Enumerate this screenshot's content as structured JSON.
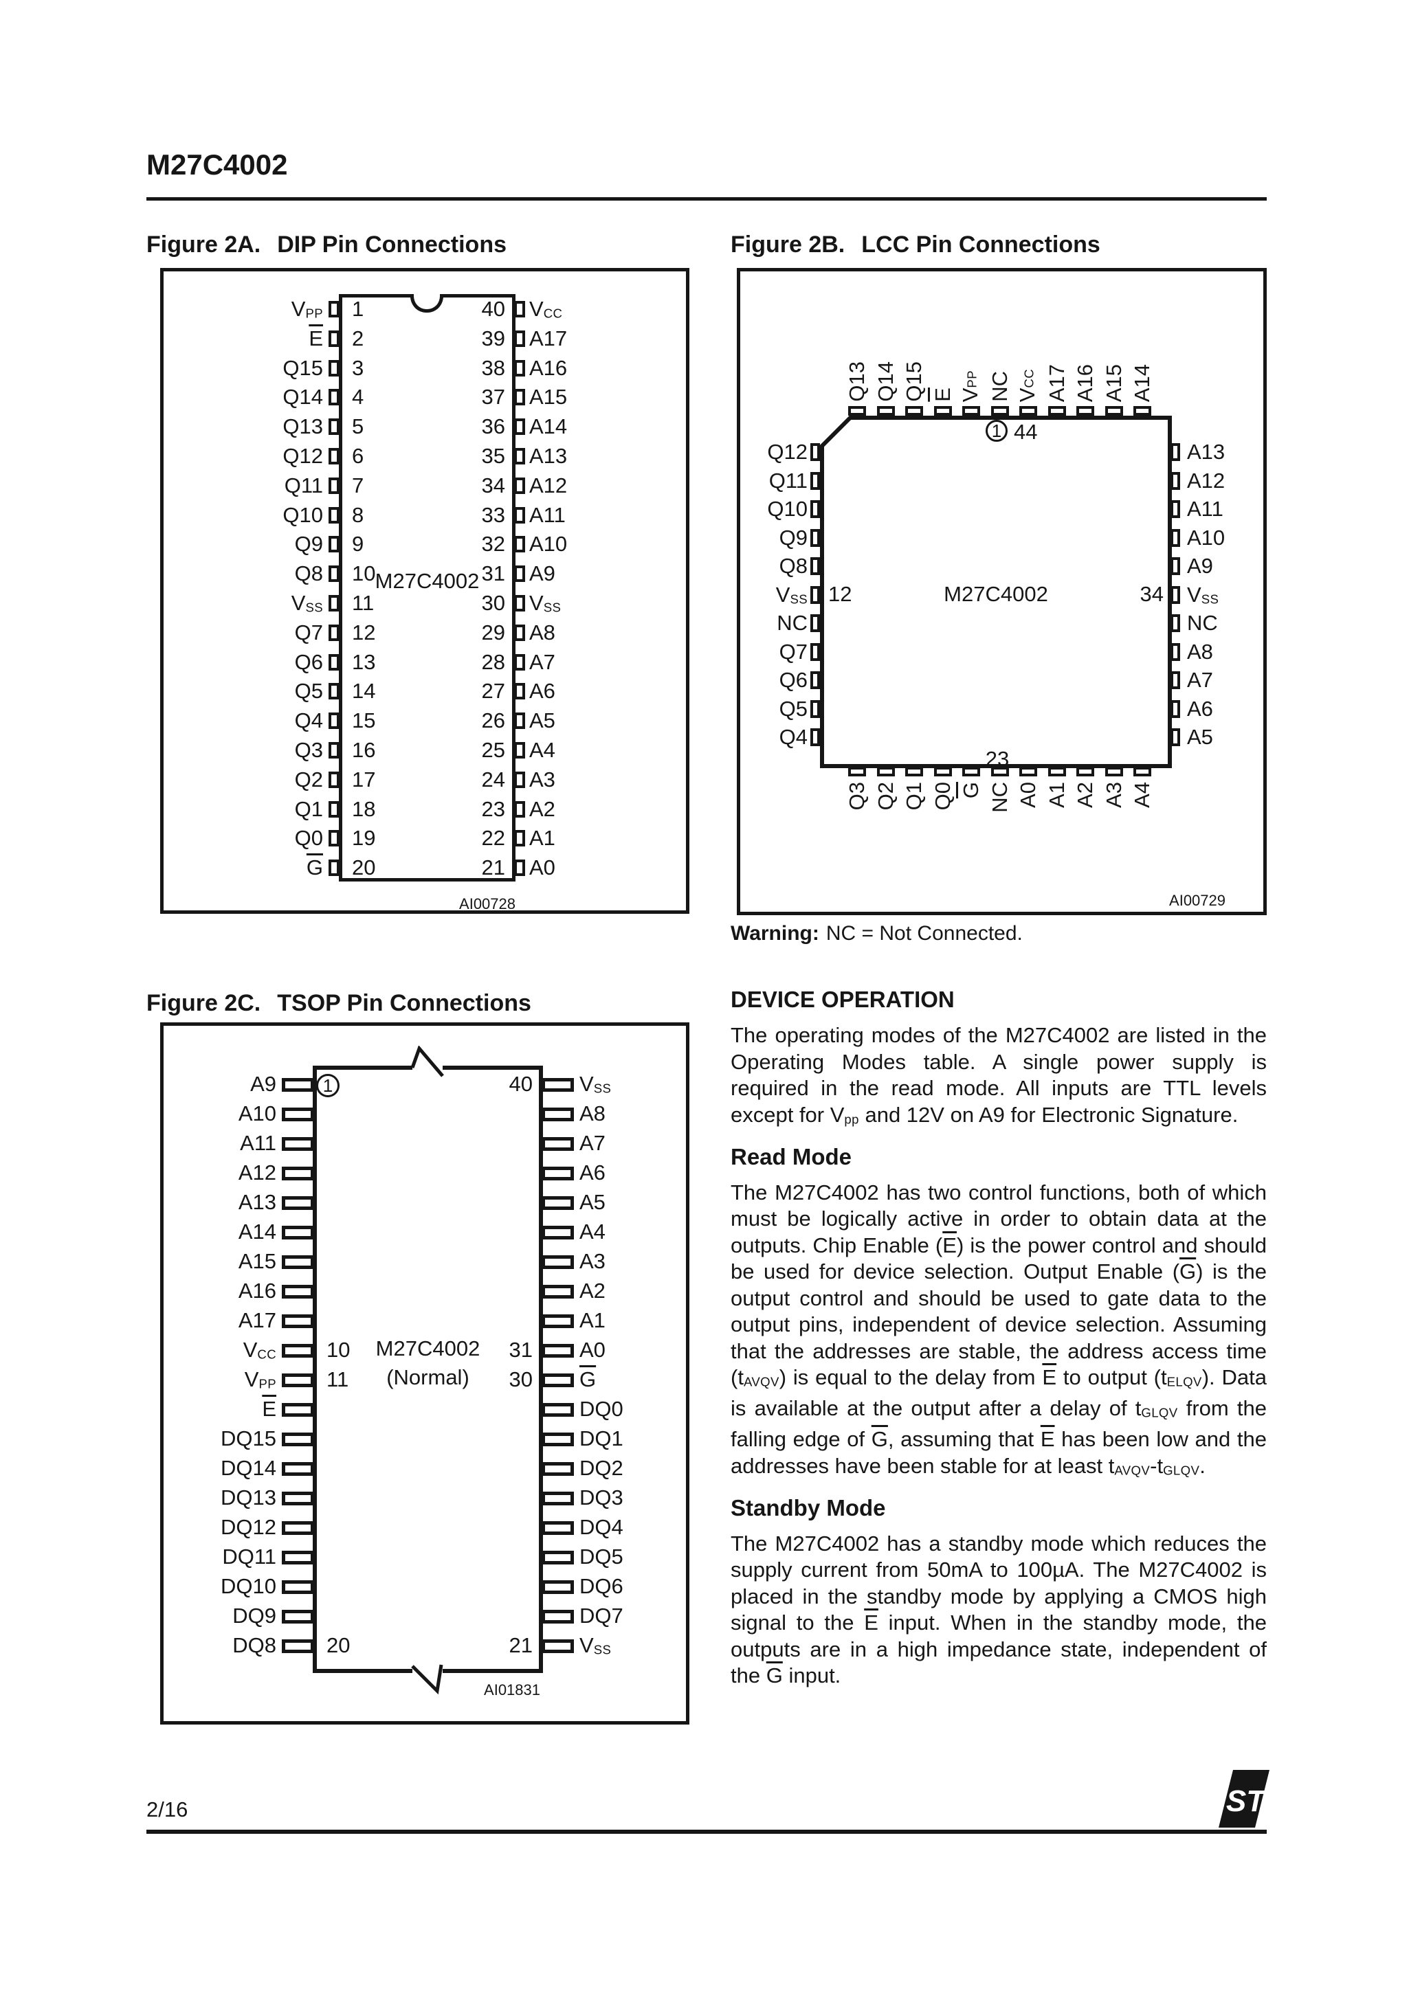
{
  "page": {
    "doc_title": "M27C4002"
  },
  "figure_2a": {
    "label": "Figure 2A.",
    "title": "DIP Pin Connections",
    "chip_label": "M27C4002",
    "note": "AI00728",
    "left_pins": [
      [
        "V[s]PP[/s]",
        "1"
      ],
      [
        "[o]E[/o]",
        "2"
      ],
      [
        "Q15",
        "3"
      ],
      [
        "Q14",
        "4"
      ],
      [
        "Q13",
        "5"
      ],
      [
        "Q12",
        "6"
      ],
      [
        "Q11",
        "7"
      ],
      [
        "Q10",
        "8"
      ],
      [
        "Q9",
        "9"
      ],
      [
        "Q8",
        "10"
      ],
      [
        "V[s]SS[/s]",
        "11"
      ],
      [
        "Q7",
        "12"
      ],
      [
        "Q6",
        "13"
      ],
      [
        "Q5",
        "14"
      ],
      [
        "Q4",
        "15"
      ],
      [
        "Q3",
        "16"
      ],
      [
        "Q2",
        "17"
      ],
      [
        "Q1",
        "18"
      ],
      [
        "Q0",
        "19"
      ],
      [
        "[o]G[/o]",
        "20"
      ]
    ],
    "right_pins": [
      [
        "40",
        "V[s]CC[/s]"
      ],
      [
        "39",
        "A17"
      ],
      [
        "38",
        "A16"
      ],
      [
        "37",
        "A15"
      ],
      [
        "36",
        "A14"
      ],
      [
        "35",
        "A13"
      ],
      [
        "34",
        "A12"
      ],
      [
        "33",
        "A11"
      ],
      [
        "32",
        "A10"
      ],
      [
        "31",
        "A9"
      ],
      [
        "30",
        "V[s]SS[/s]"
      ],
      [
        "29",
        "A8"
      ],
      [
        "28",
        "A7"
      ],
      [
        "27",
        "A6"
      ],
      [
        "26",
        "A5"
      ],
      [
        "25",
        "A4"
      ],
      [
        "24",
        "A3"
      ],
      [
        "23",
        "A2"
      ],
      [
        "22",
        "A1"
      ],
      [
        "21",
        "A0"
      ]
    ]
  },
  "figure_2b": {
    "label": "Figure 2B.",
    "title": "LCC Pin Connections",
    "chip_label": "M27C4002",
    "note": "AI00729",
    "pin1_marker": "1",
    "pin1_num": "44",
    "left_num": "12",
    "right_num": "34",
    "bottom_num": "23",
    "top_pins": [
      "Q13",
      "Q14",
      "Q15",
      "[o]E[/o]",
      "V[s]PP[/s]",
      "NC",
      "V[s]CC[/s]",
      "A17",
      "A16",
      "A15",
      "A14"
    ],
    "left_pins": [
      "Q12",
      "Q11",
      "Q10",
      "Q9",
      "Q8",
      "V[s]SS[/s]",
      "NC",
      "Q7",
      "Q6",
      "Q5",
      "Q4"
    ],
    "right_pins": [
      "A13",
      "A12",
      "A11",
      "A10",
      "A9",
      "V[s]SS[/s]",
      "NC",
      "A8",
      "A7",
      "A6",
      "A5"
    ],
    "bottom_pins": [
      "Q3",
      "Q2",
      "Q1",
      "Q0",
      "[o]G[/o]",
      "NC",
      "A0",
      "A1",
      "A2",
      "A3",
      "A4"
    ],
    "warning_label": "Warning:",
    "warning_text": "NC = Not Connected."
  },
  "figure_2c": {
    "label": "Figure 2C.",
    "title": "TSOP Pin Connections",
    "chip_label": "M27C4002",
    "chip_sublabel": "(Normal)",
    "note": "AI01831",
    "pin1_marker": "1",
    "left_pins": [
      [
        "A9",
        ""
      ],
      [
        "A10",
        ""
      ],
      [
        "A11",
        ""
      ],
      [
        "A12",
        ""
      ],
      [
        "A13",
        ""
      ],
      [
        "A14",
        ""
      ],
      [
        "A15",
        ""
      ],
      [
        "A16",
        ""
      ],
      [
        "A17",
        ""
      ],
      [
        "V[s]CC[/s]",
        "10"
      ],
      [
        "V[s]PP[/s]",
        "11"
      ],
      [
        "[o]E[/o]",
        ""
      ],
      [
        "DQ15",
        ""
      ],
      [
        "DQ14",
        ""
      ],
      [
        "DQ13",
        ""
      ],
      [
        "DQ12",
        ""
      ],
      [
        "DQ11",
        ""
      ],
      [
        "DQ10",
        ""
      ],
      [
        "DQ9",
        ""
      ],
      [
        "DQ8",
        "20"
      ]
    ],
    "right_pins": [
      [
        "40",
        "V[s]SS[/s]"
      ],
      [
        "",
        "A8"
      ],
      [
        "",
        "A7"
      ],
      [
        "",
        "A6"
      ],
      [
        "",
        "A5"
      ],
      [
        "",
        "A4"
      ],
      [
        "",
        "A3"
      ],
      [
        "",
        "A2"
      ],
      [
        "",
        "A1"
      ],
      [
        "31",
        "A0"
      ],
      [
        "30",
        "[o]G[/o]"
      ],
      [
        "",
        "DQ0"
      ],
      [
        "",
        "DQ1"
      ],
      [
        "",
        "DQ2"
      ],
      [
        "",
        "DQ3"
      ],
      [
        "",
        "DQ4"
      ],
      [
        "",
        "DQ5"
      ],
      [
        "",
        "DQ6"
      ],
      [
        "",
        "DQ7"
      ],
      [
        "21",
        "V[s]SS[/s]"
      ]
    ]
  },
  "sections": [
    {
      "heading": "DEVICE OPERATION",
      "body": "The operating modes of the M27C4002 are listed in the Operating Modes table. A single power sup­ply is required in the read mode.  All inputs are TTL levels except for V[s]pp[/s] and 12V on A9 for Electronic Signature."
    },
    {
      "heading": "Read Mode",
      "body": "The M27C4002 has two control functions, both of which must be logically active in order to obtain data at the outputs.  Chip Enable ([o]E[/o]) is the power control and should be used for device selection. Output Enable ([o]G[/o]) is the output control and should be used to gate data to the output pins, inde­pendent of device selection.  Assuming that the addresses are stable, the address access time (t[s]AVQV[/s]) is equal to the delay from [o]E[/o] to output (t[s]ELQV[/s]). Data is available at the output after a delay of t[s]GLQV[/s] from the falling edge of [o]G[/o], assuming that [o]E[/o] has been low and the addresses have been stable for at least t[s]AVQV[/s]-t[s]GLQV[/s]."
    },
    {
      "heading": "Standby Mode",
      "body": "The M27C4002 has a standby mode which re­duces the supply current from 50mA to 100µA. The M27C4002 is placed in the standby mode by ap­plying a CMOS high signal to the [o]E[/o] input.  When in the standby mode, the outputs are in a high imped­ance state, independent of the [o]G[/o] input."
    }
  ],
  "footer": {
    "page_number": "2/16",
    "logo_text": "ST"
  }
}
